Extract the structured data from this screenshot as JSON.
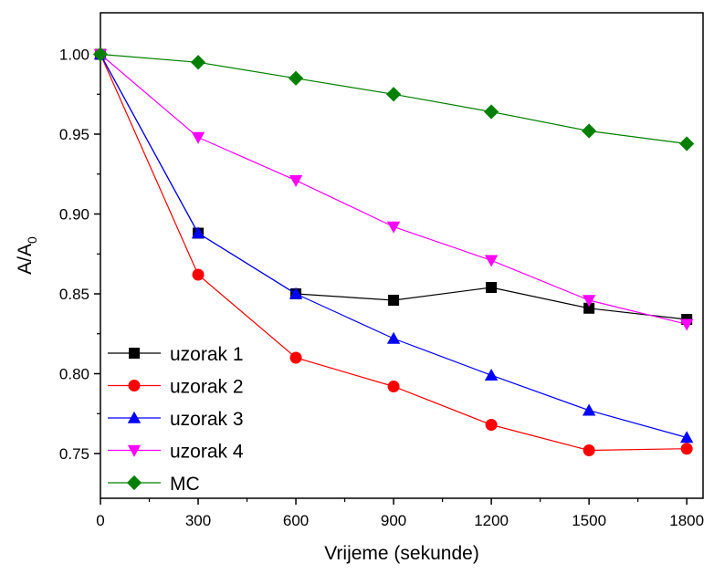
{
  "chart_data": {
    "type": "line",
    "xlabel": "Vrijeme (sekunde)",
    "ylabel_main": "A/A",
    "ylabel_sub": "0",
    "xlim": [
      0,
      1850
    ],
    "ylim": [
      0.722,
      1.026
    ],
    "xticks": [
      0,
      300,
      600,
      900,
      1200,
      1500,
      1800
    ],
    "yticks": [
      0.75,
      0.8,
      0.85,
      0.9,
      0.95,
      1.0
    ],
    "ytick_labels": [
      "0.75",
      "0.80",
      "0.85",
      "0.90",
      "0.95",
      "1.00"
    ],
    "x": [
      0,
      300,
      600,
      900,
      1200,
      1500,
      1800
    ],
    "legend_position": "bottom-left",
    "series": [
      {
        "name": "uzorak 1",
        "color": "#000000",
        "marker": "square",
        "values": [
          1.0,
          0.888,
          0.85,
          0.846,
          0.854,
          0.841,
          0.834
        ]
      },
      {
        "name": "uzorak 2",
        "color": "#ff0000",
        "marker": "circle",
        "values": [
          1.0,
          0.862,
          0.81,
          0.792,
          0.768,
          0.752,
          0.753
        ]
      },
      {
        "name": "uzorak 3",
        "color": "#0000ff",
        "marker": "triangle-up",
        "values": [
          1.0,
          0.888,
          0.85,
          0.822,
          0.799,
          0.777,
          0.76
        ]
      },
      {
        "name": "uzorak 4",
        "color": "#ff00ff",
        "marker": "triangle-down",
        "values": [
          1.0,
          0.948,
          0.921,
          0.892,
          0.871,
          0.846,
          0.831
        ]
      },
      {
        "name": "MC",
        "color": "#008000",
        "marker": "diamond",
        "values": [
          1.0,
          0.995,
          0.985,
          0.975,
          0.964,
          0.952,
          0.944
        ]
      }
    ]
  }
}
